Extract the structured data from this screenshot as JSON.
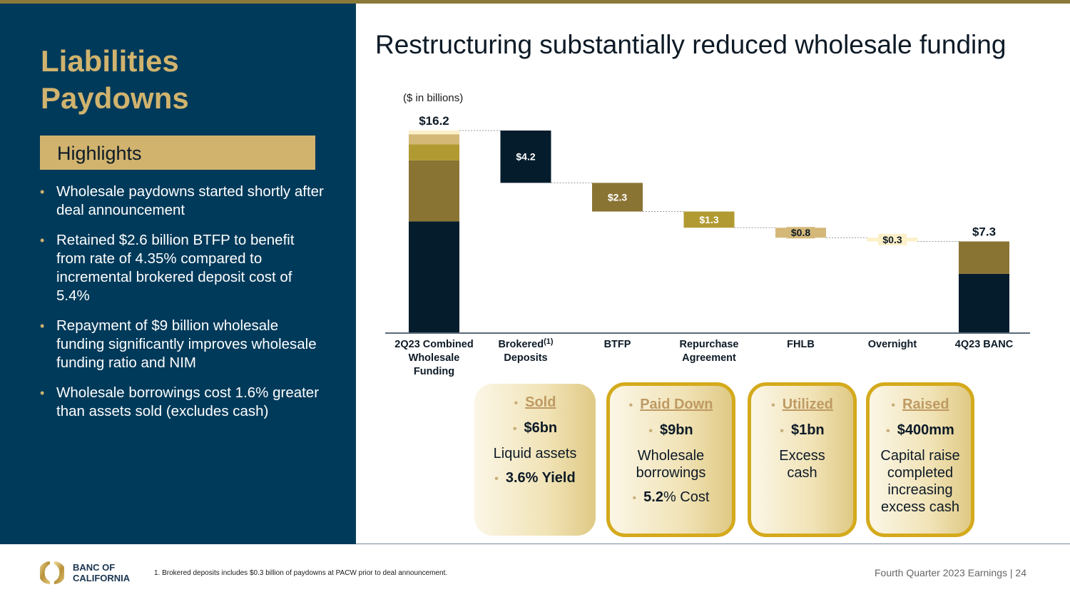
{
  "left_panel": {
    "title_line1": "Liabilities",
    "title_line2": "Paydowns",
    "highlights_label": "Highlights",
    "bullets": [
      "Wholesale paydowns started shortly after deal announcement",
      "Retained $2.6 billion BTFP to benefit from rate of 4.35% compared to incremental brokered deposit cost of 5.4%",
      "Repayment of $9 billion wholesale funding significantly improves wholesale funding ratio and NIM",
      "Wholesale borrowings cost 1.6% greater than assets sold (excludes cash)"
    ]
  },
  "main_title": "Restructuring substantially reduced wholesale funding",
  "units_label": "($ in billions)",
  "colors": {
    "navy": "#041c2c",
    "olive": "#8a7434",
    "gold": "#b19a31",
    "tan": "#d4b878",
    "cream": "#fcf0c8",
    "panel": "#003a5a",
    "accent": "#d1b36e"
  },
  "chart_data": {
    "type": "waterfall",
    "title": "Restructuring substantially reduced wholesale funding",
    "ylabel": "($ in billions)",
    "ylim": [
      0,
      16.2
    ],
    "categories": [
      "2Q23 Combined Wholesale Funding",
      "Brokered Deposits",
      "BTFP",
      "Repurchase Agreement",
      "FHLB",
      "Overnight",
      "4Q23 BANC"
    ],
    "category_lines": [
      [
        "2Q23 Combined",
        "Wholesale",
        "Funding"
      ],
      [
        "Brokered",
        "Deposits"
      ],
      [
        "BTFP"
      ],
      [
        "Repurchase",
        "Agreement"
      ],
      [
        "FHLB"
      ],
      [
        "Overnight"
      ],
      [
        "4Q23 BANC"
      ]
    ],
    "category_superscripts": [
      "",
      "(1)",
      "",
      "",
      "",
      "",
      ""
    ],
    "start_total": {
      "label": "$16.2",
      "value": 16.2,
      "segments": [
        {
          "name": "Brokered Deposits",
          "value": 8.9,
          "color": "navy"
        },
        {
          "name": "BTFP",
          "value": 4.9,
          "color": "olive"
        },
        {
          "name": "Repurchase Agreement",
          "value": 1.3,
          "color": "gold"
        },
        {
          "name": "FHLB",
          "value": 0.8,
          "color": "tan"
        },
        {
          "name": "Overnight",
          "value": 0.3,
          "color": "cream"
        }
      ]
    },
    "decreases": [
      {
        "name": "Brokered Deposits",
        "value": 4.2,
        "label": "$4.2",
        "color": "navy",
        "label_color": "#ffffff"
      },
      {
        "name": "BTFP",
        "value": 2.3,
        "label": "$2.3",
        "color": "olive",
        "label_color": "#ffffff"
      },
      {
        "name": "Repurchase Agreement",
        "value": 1.3,
        "label": "$1.3",
        "color": "gold",
        "label_color": "#ffffff"
      },
      {
        "name": "FHLB",
        "value": 0.8,
        "label": "$0.8",
        "color": "tan",
        "label_color": "#0d1a26"
      },
      {
        "name": "Overnight",
        "value": 0.3,
        "label": "$0.3",
        "color": "cream",
        "label_color": "#0d1a26"
      }
    ],
    "end_total": {
      "label": "$7.3",
      "value": 7.3,
      "segments": [
        {
          "name": "Brokered Deposits",
          "value": 4.7,
          "color": "navy"
        },
        {
          "name": "BTFP",
          "value": 2.6,
          "color": "olive"
        }
      ]
    }
  },
  "cards": [
    {
      "header": "Sold",
      "amount": "$6bn",
      "description": "Liquid assets",
      "metric_bold": "3.6% Yield",
      "metric_rest": ""
    },
    {
      "header": "Paid Down",
      "amount": "$9bn",
      "description": "Wholesale borrowings",
      "metric_bold": "5.2",
      "metric_rest": "% Cost"
    },
    {
      "header": "Utilized",
      "amount": "$1bn",
      "description": "Excess cash",
      "metric_bold": "",
      "metric_rest": ""
    },
    {
      "header": "Raised",
      "amount": "$400mm",
      "description": "Capital raise completed increasing excess cash",
      "metric_bold": "",
      "metric_rest": ""
    }
  ],
  "footer": {
    "logo_line1": "BANC OF",
    "logo_line2": "CALIFORNIA",
    "footnote": "1. Brokered deposits includes $0.3 billion of paydowns at PACW prior to deal announcement.",
    "right_text": "Fourth Quarter 2023 Earnings |  24"
  }
}
